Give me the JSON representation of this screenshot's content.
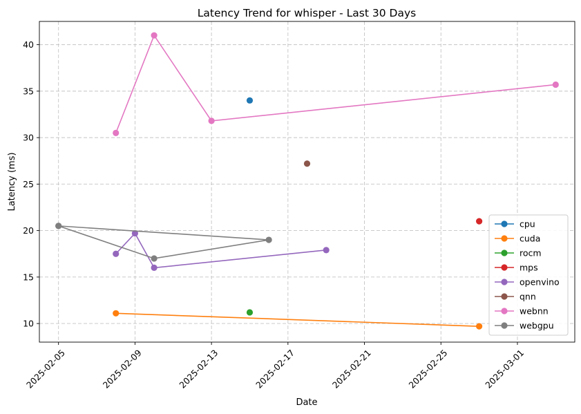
{
  "chart_data": {
    "type": "line",
    "title": "Latency Trend for whisper - Last 30 Days",
    "xlabel": "Date",
    "ylabel": "Latency (ms)",
    "x_ticks": [
      "2025-02-05",
      "2025-02-09",
      "2025-02-13",
      "2025-02-17",
      "2025-02-21",
      "2025-02-25",
      "2025-03-01"
    ],
    "y_ticks": [
      10,
      15,
      20,
      25,
      30,
      35,
      40
    ],
    "xlim": [
      "2025-02-04",
      "2025-03-04"
    ],
    "ylim": [
      8.0,
      42.5
    ],
    "grid": true,
    "legend_position": "bottom-right",
    "series": [
      {
        "name": "cpu",
        "color": "#1f77b4",
        "points": [
          {
            "x": "2025-02-15",
            "y": 34.0
          }
        ]
      },
      {
        "name": "cuda",
        "color": "#ff7f0e",
        "points": [
          {
            "x": "2025-02-08",
            "y": 11.1
          },
          {
            "x": "2025-02-27",
            "y": 9.7
          }
        ]
      },
      {
        "name": "rocm",
        "color": "#2ca02c",
        "points": [
          {
            "x": "2025-02-15",
            "y": 11.2
          }
        ]
      },
      {
        "name": "mps",
        "color": "#d62728",
        "points": [
          {
            "x": "2025-02-27",
            "y": 21.0
          }
        ]
      },
      {
        "name": "openvino",
        "color": "#9467bd",
        "points": [
          {
            "x": "2025-02-08",
            "y": 17.5
          },
          {
            "x": "2025-02-09",
            "y": 19.7
          },
          {
            "x": "2025-02-10",
            "y": 16.0
          },
          {
            "x": "2025-02-19",
            "y": 17.9
          }
        ]
      },
      {
        "name": "qnn",
        "color": "#8c564b",
        "points": [
          {
            "x": "2025-02-18",
            "y": 27.2
          }
        ]
      },
      {
        "name": "webnn",
        "color": "#e377c2",
        "points": [
          {
            "x": "2025-02-08",
            "y": 30.5
          },
          {
            "x": "2025-02-10",
            "y": 41.0
          },
          {
            "x": "2025-02-13",
            "y": 31.8
          },
          {
            "x": "2025-03-03",
            "y": 35.7
          }
        ]
      },
      {
        "name": "webgpu",
        "color": "#7f7f7f",
        "points": [
          {
            "x": "2025-02-05",
            "y": 20.5
          },
          {
            "x": "2025-02-16",
            "y": 19.0
          },
          {
            "x": "2025-02-10",
            "y": 17.0
          },
          {
            "x": "2025-02-05",
            "y": 20.5
          }
        ]
      }
    ]
  }
}
